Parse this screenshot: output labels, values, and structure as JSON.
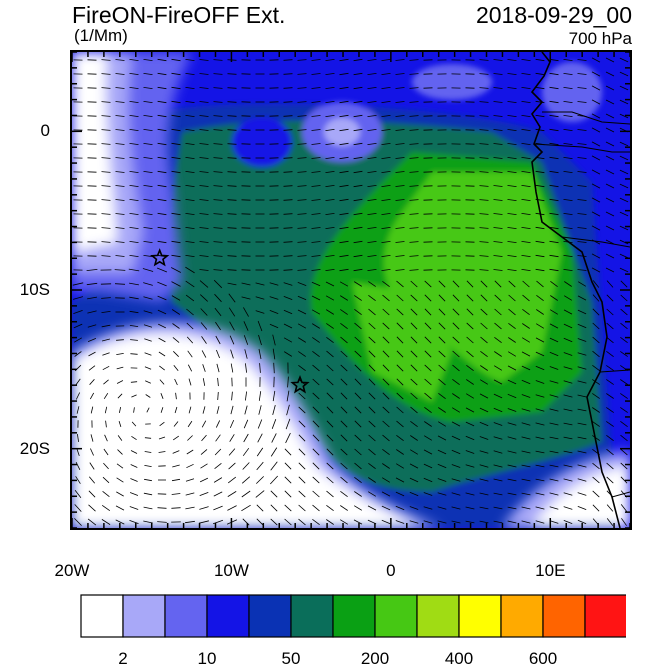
{
  "header": {
    "title": "FireON-FireOFF Ext.",
    "units": "(1/Mm)",
    "datetime": "2018-09-29_00",
    "level": "700 hPa"
  },
  "map": {
    "lon_range": [
      -20,
      15
    ],
    "lat_range": [
      -25,
      5
    ],
    "lon_ticks": [
      {
        "value": -20,
        "label": "20W"
      },
      {
        "value": -10,
        "label": "10W"
      },
      {
        "value": 0,
        "label": "0"
      },
      {
        "value": 10,
        "label": "10E"
      }
    ],
    "lat_ticks": [
      {
        "value": 0,
        "label": "0"
      },
      {
        "value": -10,
        "label": "10S"
      },
      {
        "value": -20,
        "label": "20S"
      }
    ],
    "markers": [
      {
        "name": "star-marker-north",
        "lon": -14.5,
        "lat": -8
      },
      {
        "name": "star-marker-south",
        "lon": -5.7,
        "lat": -16
      }
    ],
    "vector_field": "wind",
    "anticyclone_center": {
      "lon": -15.5,
      "lat": -17.5
    }
  },
  "colorbar": {
    "colors": [
      "#ffffff",
      "#a8a8f8",
      "#6464f0",
      "#1414e6",
      "#0a32b4",
      "#0a6e5a",
      "#0aa014",
      "#46c814",
      "#a0dc14",
      "#ffff00",
      "#ffaa00",
      "#ff6400",
      "#ff1414"
    ],
    "labels": [
      {
        "index": 1,
        "text": "2"
      },
      {
        "index": 3,
        "text": "10"
      },
      {
        "index": 5,
        "text": "50"
      },
      {
        "index": 7,
        "text": "200"
      },
      {
        "index": 9,
        "text": "400"
      },
      {
        "index": 11,
        "text": "600"
      }
    ]
  },
  "colors": {
    "land_outline": "#000000",
    "vector_color": "#000000"
  }
}
